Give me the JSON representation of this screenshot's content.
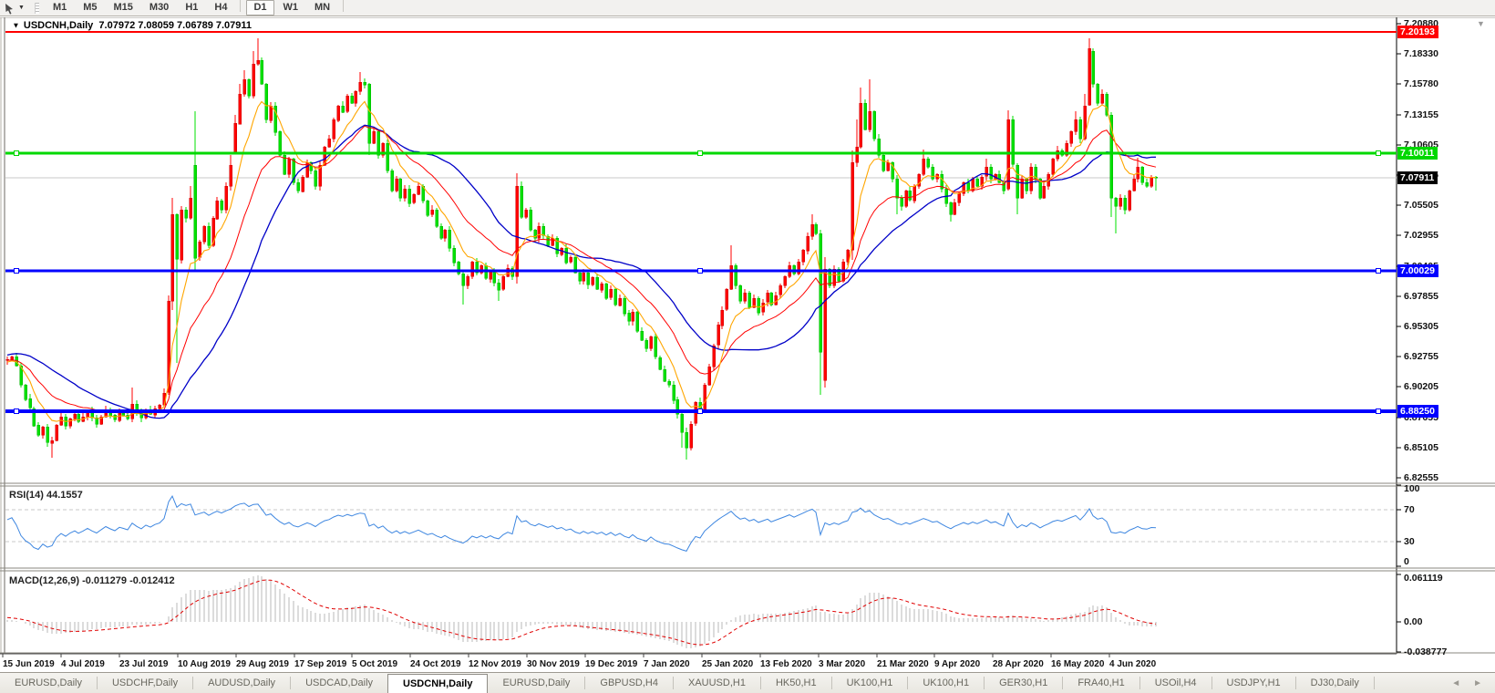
{
  "toolbar": {
    "timeframes": [
      "M1",
      "M5",
      "M15",
      "M30",
      "H1",
      "H4",
      "D1",
      "W1",
      "MN"
    ],
    "active": "D1"
  },
  "chart_header": {
    "symbol": "USDCNH,Daily",
    "ohlc_text": "7.07972 7.08059 7.06789 7.07911"
  },
  "indicators": {
    "rsi": {
      "label": "RSI(14) 44.1557",
      "axis_labels": [
        "100",
        "70",
        "30",
        "0"
      ],
      "levels": [
        100,
        70,
        30,
        0
      ],
      "dashed_levels": [
        70,
        30
      ],
      "color": "#3d86e0"
    },
    "macd": {
      "label": "MACD(12,26,9) -0.011279 -0.012412",
      "axis_labels": [
        "0.061119",
        "0.00",
        "-0.038777"
      ],
      "axis_values": [
        0.061119,
        0.0,
        -0.038777
      ],
      "bar_color": "#b9b9b9",
      "signal_color": "#e00000"
    }
  },
  "chart_data": {
    "type": "candlestick",
    "title": "USDCNH,Daily",
    "x_labels": [
      "15 Jun 2019",
      "4 Jul 2019",
      "23 Jul 2019",
      "10 Aug 2019",
      "29 Aug 2019",
      "17 Sep 2019",
      "5 Oct 2019",
      "24 Oct 2019",
      "12 Nov 2019",
      "30 Nov 2019",
      "19 Dec 2019",
      "7 Jan 2020",
      "25 Jan 2020",
      "13 Feb 2020",
      "3 Mar 2020",
      "21 Mar 2020",
      "9 Apr 2020",
      "28 Apr 2020",
      "16 May 2020",
      "4 Jun 2020"
    ],
    "y_tick_labels": [
      "7.20880",
      "7.18330",
      "7.15780",
      "7.13155",
      "7.10605",
      "7.08055",
      "7.05505",
      "7.02955",
      "7.00405",
      "6.97855",
      "6.95305",
      "6.92755",
      "6.90205",
      "6.87655",
      "6.85105",
      "6.82555"
    ],
    "y_top_value": 7.2088,
    "y_step": 0.0255,
    "current_price": "7.07911",
    "up_color": "#ff0000",
    "down_color": "#00e100",
    "ma_colors": {
      "fast": "#ffa600",
      "medium": "#ff0000",
      "slow": "#0000c8"
    },
    "hlines": [
      {
        "price": 7.20193,
        "label": "7.20193",
        "color": "#ff0000",
        "width": 2,
        "selected": false
      },
      {
        "price": 7.10011,
        "label": "7.10011",
        "color": "#00d800",
        "width": 3,
        "selected": true
      },
      {
        "price": 7.00029,
        "label": "7.00029",
        "color": "#0000ff",
        "width": 3,
        "selected": true
      },
      {
        "price": 6.8825,
        "label": "6.88250",
        "color": "#0000ff",
        "width": 4,
        "selected": true
      }
    ],
    "preroll_closes": [
      6.86,
      6.864,
      6.868,
      6.872,
      6.876,
      6.88,
      6.884,
      6.888,
      6.892,
      6.896,
      6.9,
      6.904,
      6.908,
      6.912,
      6.916,
      6.92,
      6.924,
      6.928,
      6.932,
      6.936,
      6.94,
      6.944,
      6.946,
      6.948,
      6.95,
      6.948,
      6.946,
      6.944,
      6.94,
      6.938,
      6.936,
      6.934,
      6.93,
      6.926,
      6.922,
      6.918,
      6.914,
      6.916,
      6.92,
      6.925
    ],
    "closes": [
      6.926,
      6.9285,
      6.921,
      6.905,
      6.893,
      6.885,
      6.8705,
      6.862,
      6.869,
      6.856,
      6.858,
      6.871,
      6.878,
      6.87,
      6.876,
      6.88,
      6.874,
      6.878,
      6.883,
      6.877,
      6.872,
      6.878,
      6.884,
      6.879,
      6.875,
      6.881,
      6.879,
      6.876,
      6.8885,
      6.882,
      6.877,
      6.884,
      6.88,
      6.885,
      6.888,
      6.898,
      6.975,
      7.048,
      7.01,
      7.052,
      7.045,
      7.062,
      7.012,
      7.025,
      7.038,
      7.022,
      7.045,
      7.06,
      7.052,
      7.072,
      7.09,
      7.125,
      7.15,
      7.162,
      7.148,
      7.175,
      7.178,
      7.158,
      7.128,
      7.14,
      7.118,
      7.098,
      7.082,
      7.095,
      7.075,
      7.068,
      7.08,
      7.092,
      7.085,
      7.072,
      7.09,
      7.105,
      7.112,
      7.128,
      7.14,
      7.135,
      7.148,
      7.142,
      7.152,
      7.16,
      7.158,
      7.108,
      7.118,
      7.098,
      7.108,
      7.085,
      7.068,
      7.078,
      7.062,
      7.07,
      7.058,
      7.065,
      7.072,
      7.06,
      7.048,
      7.052,
      7.038,
      7.028,
      7.035,
      7.02,
      7.008,
      6.998,
      6.988,
      6.996,
      7.008,
      6.999,
      7.005,
      6.994,
      7.0,
      6.991,
      6.985,
      6.996,
      7.003,
      6.996,
      7.072,
      7.046,
      7.052,
      7.035,
      7.028,
      7.038,
      7.03,
      7.022,
      7.028,
      7.015,
      7.02,
      7.008,
      7.012,
      6.999,
      6.992,
      6.999,
      6.989,
      6.995,
      6.985,
      6.99,
      6.978,
      6.985,
      6.972,
      6.978,
      6.965,
      6.958,
      6.966,
      6.95,
      6.942,
      6.935,
      6.945,
      6.928,
      6.918,
      6.908,
      6.905,
      6.892,
      6.88,
      6.865,
      6.852,
      6.872,
      6.89,
      6.882,
      6.905,
      6.92,
      6.938,
      6.955,
      6.968,
      6.985,
      7.005,
      6.988,
      6.975,
      6.982,
      6.97,
      6.978,
      6.966,
      6.974,
      6.982,
      6.972,
      6.98,
      6.988,
      6.996,
      7.005,
      6.998,
      7.008,
      7.018,
      7.03,
      7.04,
      7.032,
      6.932,
      7.002,
      6.988,
      7.002,
      6.992,
      7.008,
      7.018,
      7.092,
      7.105,
      7.142,
      7.12,
      7.135,
      7.112,
      7.098,
      7.085,
      7.092,
      7.078,
      7.062,
      7.055,
      7.068,
      7.06,
      7.072,
      7.082,
      7.095,
      7.088,
      7.078,
      7.082,
      7.07,
      7.058,
      7.048,
      7.058,
      7.066,
      7.075,
      7.068,
      7.078,
      7.072,
      7.08,
      7.088,
      7.078,
      7.082,
      7.075,
      7.068,
      7.128,
      7.09,
      7.062,
      7.078,
      7.068,
      7.088,
      7.078,
      7.062,
      7.072,
      7.082,
      7.095,
      7.102,
      7.098,
      7.108,
      7.118,
      7.128,
      7.112,
      7.14,
      7.188,
      7.158,
      7.142,
      7.15,
      7.132,
      7.062,
      7.055,
      7.062,
      7.052,
      7.068,
      7.078,
      7.088,
      7.075,
      7.072,
      7.08,
      7.0791
    ],
    "open_overrides": {
      "42": 7.09,
      "51": 7.1,
      "183": 6.908,
      "224": 7.07,
      "243": 7.186,
      "257": 7.0797
    },
    "wick_overrides": {
      "10": [
        null,
        6.843
      ],
      "28": [
        6.902,
        null
      ],
      "36": [
        6.98,
        6.896
      ],
      "37": [
        7.062,
        6.968
      ],
      "38": [
        null,
        6.923
      ],
      "41": [
        7.072,
        null
      ],
      "42": [
        7.135,
        7.0
      ],
      "50": [
        7.098,
        null
      ],
      "51": [
        7.132,
        null
      ],
      "52": [
        7.158,
        null
      ],
      "53": [
        7.17,
        null
      ],
      "55": [
        7.186,
        null
      ],
      "56": [
        7.1965,
        null
      ],
      "79": [
        7.168,
        null
      ],
      "81": [
        null,
        7.098
      ],
      "102": [
        null,
        6.972
      ],
      "110": [
        null,
        6.975
      ],
      "114": [
        7.083,
        6.99
      ],
      "151": [
        null,
        6.852
      ],
      "152": [
        null,
        6.842
      ],
      "162": [
        7.022,
        null
      ],
      "180": [
        7.048,
        null
      ],
      "182": [
        null,
        6.896
      ],
      "183": [
        7.012,
        6.902
      ],
      "189": [
        7.102,
        7.01
      ],
      "190": [
        7.128,
        null
      ],
      "191": [
        7.155,
        null
      ],
      "193": [
        7.162,
        null
      ],
      "199": [
        null,
        7.048
      ],
      "205": [
        7.103,
        null
      ],
      "211": [
        null,
        7.042
      ],
      "219": [
        7.095,
        null
      ],
      "224": [
        7.136,
        null
      ],
      "226": [
        null,
        7.048
      ],
      "239": [
        7.135,
        null
      ],
      "241": [
        7.15,
        null
      ],
      "242": [
        7.1965,
        7.14
      ],
      "247": [
        null,
        7.046
      ],
      "248": [
        null,
        7.032
      ],
      "253": [
        7.096,
        null
      ],
      "257": [
        7.0806,
        7.0679
      ]
    },
    "wick_up_pattern": [
      0.0025,
      0.001,
      0.0032,
      0.0018,
      0.0008,
      0.0036,
      0.0014,
      0.0025,
      0.001,
      0.003
    ],
    "wick_dn_pattern": [
      0.0008,
      0.0032,
      0.0014,
      0.0027,
      0.0036,
      0.001,
      0.0021,
      0.0013,
      0.003,
      0.0018
    ]
  },
  "bottom_tabs": {
    "items": [
      "EURUSD,Daily",
      "USDCHF,Daily",
      "AUDUSD,Daily",
      "USDCAD,Daily",
      "USDCNH,Daily",
      "EURUSD,Daily",
      "GBPUSD,H4",
      "XAUUSD,H1",
      "HK50,H1",
      "UK100,H1",
      "UK100,H1",
      "GER30,H1",
      "FRA40,H1",
      "USOil,H4",
      "USDJPY,H1",
      "DJ30,Daily"
    ],
    "active_index": 4
  }
}
